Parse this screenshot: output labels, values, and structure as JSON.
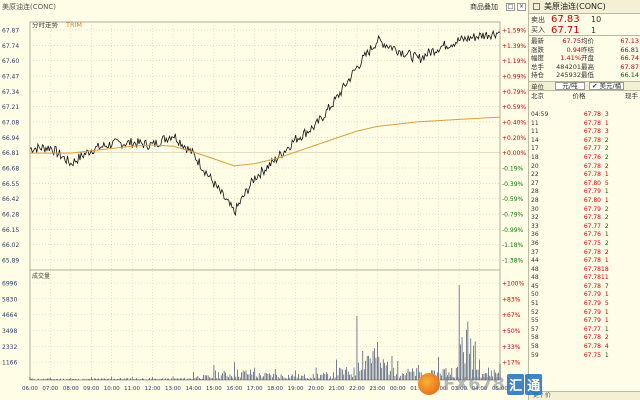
{
  "window": {
    "title": "美原油连(CONC)",
    "links": [
      "商品叠加"
    ],
    "buttons": [
      "□",
      "×"
    ]
  },
  "chart": {
    "mode_label": "分时走势",
    "mode_badge": "TRIM",
    "price_axis": [
      "67.87",
      "67.74",
      "67.60",
      "67.47",
      "67.34",
      "67.21",
      "67.08",
      "66.94",
      "66.81",
      "66.68",
      "66.55",
      "66.42",
      "66.28",
      "66.15",
      "66.02",
      "65.89"
    ],
    "pct_axis": [
      "+1.59%",
      "+1.39%",
      "+1.19%",
      "+0.99%",
      "+0.79%",
      "+0.59%",
      "+0.40%",
      "+0.20%",
      "+0.00%",
      "-0.19%",
      "-0.39%",
      "-0.59%",
      "-0.79%",
      "-0.99%",
      "-1.18%",
      "-1.38%"
    ],
    "vol_title": "成交量",
    "vol_axis": [
      "6996",
      "5830",
      "4664",
      "3498",
      "2332",
      "1166"
    ],
    "vol_pct_axis": [
      "+100%",
      "+83%",
      "+67%",
      "+50%",
      "+33%",
      "+17%"
    ],
    "time_axis": [
      "06:00",
      "07:00",
      "08:00",
      "09:00",
      "10:00",
      "11:00",
      "12:00",
      "13:00",
      "14:00",
      "15:00",
      "16:00",
      "17:00",
      "18:00",
      "19:00",
      "20:00",
      "21:00",
      "22:00",
      "23:00",
      "00:00",
      "01:00",
      "02:00",
      "03:00",
      "04:00",
      "05:00"
    ],
    "colors": {
      "price_line": "#111111",
      "avg_line": "#d9a040",
      "up": "#cc0000",
      "vol_bar": "#1c2f60",
      "grid": "#c8c0a0"
    }
  },
  "chart_data": {
    "type": "line",
    "x": [
      "06:00",
      "07:00",
      "08:00",
      "09:00",
      "10:00",
      "11:00",
      "12:00",
      "13:00",
      "14:00",
      "15:00",
      "16:00",
      "17:00",
      "18:00",
      "19:00",
      "20:00",
      "21:00",
      "22:00",
      "23:00",
      "00:00",
      "01:00",
      "02:00",
      "03:00",
      "04:00",
      "05:00"
    ],
    "series": [
      {
        "values": [
          66.85,
          66.86,
          66.72,
          66.84,
          66.89,
          66.9,
          66.88,
          66.97,
          66.8,
          66.55,
          66.3,
          66.6,
          66.75,
          66.93,
          67.05,
          67.28,
          67.55,
          67.78,
          67.7,
          67.62,
          67.72,
          67.78,
          67.82,
          67.85
        ]
      },
      {
        "values": [
          66.81,
          66.81,
          66.81,
          66.83,
          66.85,
          66.87,
          66.88,
          66.87,
          66.82,
          66.76,
          66.7,
          66.72,
          66.76,
          66.82,
          66.88,
          66.94,
          67.0,
          67.04,
          67.06,
          67.08,
          67.09,
          67.1,
          67.11,
          67.12
        ]
      }
    ],
    "volume": [
      200,
      180,
      160,
      210,
      250,
      230,
      210,
      260,
      600,
      1100,
      1300,
      900,
      800,
      700,
      900,
      1500,
      4700,
      2800,
      1400,
      1100,
      1700,
      6996,
      1500,
      1200
    ],
    "ylim": [
      65.89,
      67.87
    ],
    "vol_ylim": [
      0,
      6996
    ]
  },
  "panel": {
    "title": "美原油连(CONC)",
    "sell": {
      "label": "卖出",
      "price": "67.83",
      "vol": "10"
    },
    "buy": {
      "label": "买入",
      "price": "67.71",
      "vol": "1"
    },
    "stats": [
      [
        "最新",
        "67.75",
        "均价",
        "67.13"
      ],
      [
        "涨跌",
        "0.94",
        "昨结",
        "66.81"
      ],
      [
        "幅度",
        "1.41%",
        "开盘",
        "66.74"
      ],
      [
        "总手",
        "484201",
        "最高",
        "67.87"
      ],
      [
        "持仓",
        "245932",
        "最低",
        "66.14"
      ]
    ],
    "unit": {
      "label": "单位",
      "value": "元/吨",
      "toggle": "✔ 美元/桶"
    },
    "tick_head": [
      "北京",
      "价格",
      "现手"
    ],
    "ticks": [
      [
        "04:59",
        "67.78",
        "3",
        "r"
      ],
      [
        "11",
        "67.78",
        "1",
        "r"
      ],
      [
        "11",
        "67.78",
        "3",
        "r"
      ],
      [
        "14",
        "67.78",
        "2",
        "g"
      ],
      [
        "17",
        "67.77",
        "2",
        "g"
      ],
      [
        "18",
        "67.76",
        "2",
        "g"
      ],
      [
        "20",
        "67.78",
        "2",
        "r"
      ],
      [
        "22",
        "67.78",
        "1",
        "r"
      ],
      [
        "27",
        "67.80",
        "5",
        "r"
      ],
      [
        "28",
        "67.79",
        "1",
        "g"
      ],
      [
        "28",
        "67.80",
        "1",
        "r"
      ],
      [
        "30",
        "67.79",
        "2",
        "g"
      ],
      [
        "32",
        "67.78",
        "2",
        "g"
      ],
      [
        "33",
        "67.77",
        "2",
        "g"
      ],
      [
        "36",
        "67.76",
        "1",
        "g"
      ],
      [
        "36",
        "67.75",
        "2",
        "g"
      ],
      [
        "37",
        "67.78",
        "2",
        "r"
      ],
      [
        "44",
        "67.78",
        "1",
        "r"
      ],
      [
        "48",
        "67.78",
        "18",
        "r"
      ],
      [
        "48",
        "67.78",
        "11",
        "r"
      ],
      [
        "45",
        "67.78",
        "7",
        "r"
      ],
      [
        "50",
        "67.79",
        "1",
        "r"
      ],
      [
        "51",
        "67.79",
        "5",
        "r"
      ],
      [
        "52",
        "67.79",
        "1",
        "r"
      ],
      [
        "55",
        "67.79",
        "1",
        "r"
      ],
      [
        "57",
        "67.77",
        "1",
        "g"
      ],
      [
        "58",
        "67.78",
        "2",
        "r"
      ],
      [
        "58",
        "67.78",
        "4",
        "r"
      ],
      [
        "59",
        "67.75",
        "1",
        "g"
      ]
    ],
    "bottom": "更 / 价"
  },
  "watermark": {
    "text": "FX678",
    "cn": [
      "汇",
      "通"
    ]
  }
}
